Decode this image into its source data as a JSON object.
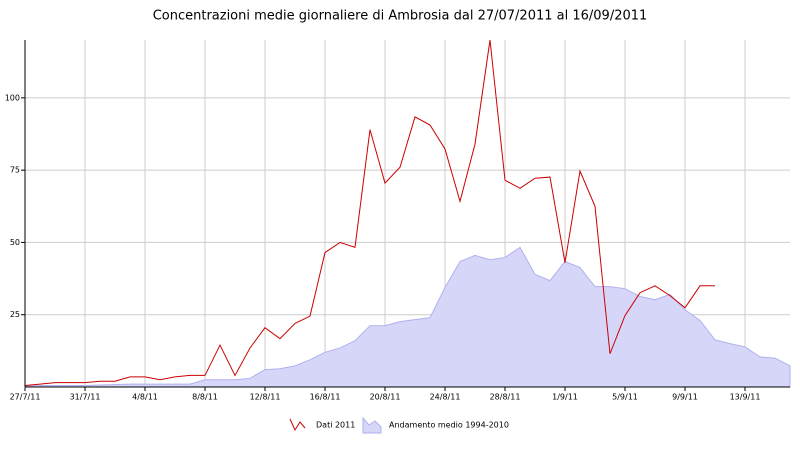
{
  "chart_data": {
    "type": "line",
    "title": "Concentrazioni medie giornaliere di Ambrosia dal 27/07/2011 al 16/09/2011",
    "categories": [
      "27/7/11",
      null,
      null,
      null,
      "31/7/11",
      null,
      null,
      null,
      "4/8/11",
      null,
      null,
      null,
      "8/8/11",
      null,
      null,
      null,
      "12/8/11",
      null,
      null,
      null,
      "16/8/11",
      null,
      null,
      null,
      "20/8/11",
      null,
      null,
      null,
      "24/8/11",
      null,
      null,
      null,
      "28/8/11",
      null,
      null,
      null,
      "1/9/11",
      null,
      null,
      null,
      "5/9/11",
      null,
      null,
      null,
      "9/9/11",
      null,
      null,
      null,
      "13/9/11",
      null,
      null,
      null
    ],
    "series": [
      {
        "name": "Dati 2011",
        "color": "#cc0000",
        "kind": "line",
        "values": [
          0.5,
          1,
          1.5,
          1.5,
          1.5,
          2,
          2,
          3.5,
          3.5,
          2.5,
          3.5,
          4,
          4,
          14.5,
          4,
          13.5,
          20.5,
          16.7,
          22,
          24.5,
          46.5,
          50,
          48.3,
          89,
          70.5,
          76,
          93.4,
          90.6,
          82.3,
          64.2,
          84,
          120,
          71.5,
          68.7,
          72.2,
          72.6,
          43,
          74.7,
          62.5,
          11.5,
          24.7,
          32.6,
          35,
          31.6,
          27.4,
          35,
          35,
          null,
          null,
          null,
          null,
          null
        ]
      },
      {
        "name": "Andamento medio 1994-2010",
        "color": "#d6d6f8",
        "kind": "area",
        "values": [
          0.3,
          0.5,
          0.5,
          0.5,
          0.5,
          0.7,
          0.8,
          1,
          1,
          1,
          1,
          1,
          2.5,
          2.5,
          2.5,
          3,
          6,
          6.3,
          7.3,
          9.4,
          12,
          13.5,
          16,
          21.2,
          21.2,
          22.6,
          23.3,
          24,
          34.4,
          43.4,
          45.5,
          44,
          44.8,
          48.3,
          38.9,
          36.8,
          43.4,
          41.3,
          34.7,
          34.7,
          34,
          31.3,
          30.2,
          32,
          26.7,
          23,
          16.3,
          15,
          13.9,
          10.4,
          10,
          7.3
        ]
      }
    ],
    "ylim": [
      0,
      120
    ],
    "yticks": [
      25,
      50,
      75,
      100
    ],
    "grid": true
  }
}
